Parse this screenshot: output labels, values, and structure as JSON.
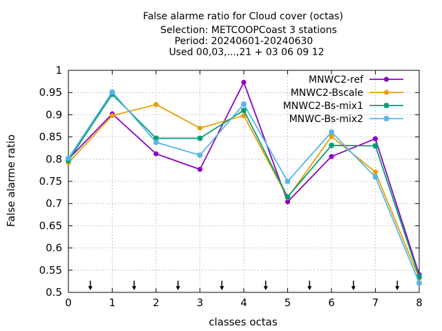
{
  "chart_data": {
    "type": "line",
    "title_lines": [
      "False alarme ratio  for Cloud cover (octas)",
      "Selection: METCOOPCoast      3 stations",
      "Period: 20240601-20240630",
      "Used 00,03,...,21 + 03 06 09 12"
    ],
    "xlabel": "classes octas",
    "ylabel": "False alarme ratio",
    "xlim": [
      0,
      8
    ],
    "ylim": [
      0.5,
      1
    ],
    "x": [
      0,
      1,
      2,
      3,
      4,
      5,
      6,
      7,
      8
    ],
    "x_ticks": [
      "0",
      "1",
      "2",
      "3",
      "4",
      "5",
      "6",
      "7",
      "8"
    ],
    "y_ticks": [
      0.5,
      0.55,
      0.6,
      0.65,
      0.7,
      0.75,
      0.8,
      0.85,
      0.9,
      0.95,
      1
    ],
    "y_tick_labels": [
      "0.5",
      "0.55",
      "0.6",
      "0.65",
      "0.7",
      "0.75",
      "0.8",
      "0.85",
      "0.9",
      "0.95",
      "1"
    ],
    "grid": true,
    "legend_position": "top-right",
    "arrow_markers_x": [
      0.5,
      1.5,
      2.5,
      3.5,
      4.5,
      5.5,
      6.5,
      7.5
    ],
    "series": [
      {
        "name": "MNWC2-ref",
        "color": "#8b00c8",
        "marker": "circle",
        "values": [
          0.8,
          0.902,
          0.812,
          0.777,
          0.973,
          0.704,
          0.806,
          0.846,
          0.54
        ]
      },
      {
        "name": "MNWC2-Bscale",
        "color": "#e69f00",
        "marker": "circle",
        "values": [
          0.792,
          0.898,
          0.923,
          0.87,
          0.898,
          0.713,
          0.851,
          0.771,
          0.532
        ]
      },
      {
        "name": "MNWC2-Bs-mix1",
        "color": "#009e73",
        "marker": "star",
        "values": [
          0.797,
          0.946,
          0.847,
          0.847,
          0.91,
          0.715,
          0.831,
          0.83,
          0.535
        ]
      },
      {
        "name": "MNWC-Bs-mix2",
        "color": "#56b4e9",
        "marker": "star",
        "values": [
          0.802,
          0.951,
          0.838,
          0.809,
          0.924,
          0.75,
          0.861,
          0.76,
          0.521
        ]
      }
    ]
  }
}
